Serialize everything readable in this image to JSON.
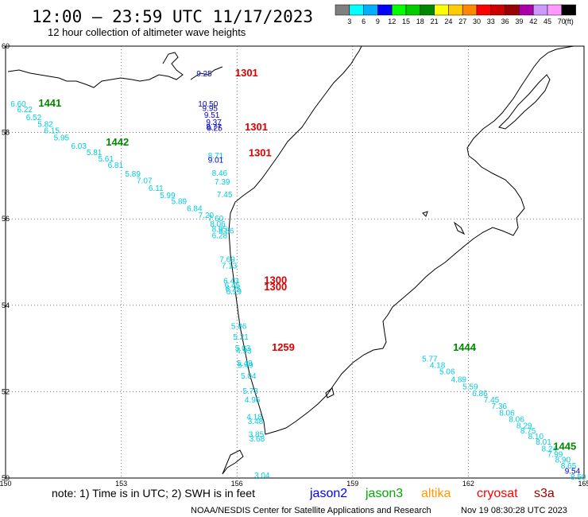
{
  "header": {
    "title": "12:00 – 23:59 UTC 11/17/2023",
    "subtitle": "12 hour collection of altimeter wave heights"
  },
  "scale": {
    "colors": [
      "#7f7f7f",
      "#00ffff",
      "#00b0ff",
      "#0000ff",
      "#00ff00",
      "#00cc00",
      "#008800",
      "#ffff00",
      "#ffcc00",
      "#ff8800",
      "#ff0000",
      "#cc0000",
      "#990000",
      "#aa00aa",
      "#cc99ff",
      "#ff99ff",
      "#000000"
    ],
    "labels": [
      "3",
      "6",
      "9",
      "12",
      "15",
      "18",
      "21",
      "24",
      "27",
      "30",
      "33",
      "36",
      "39",
      "42",
      "45",
      "70",
      "(ft)"
    ]
  },
  "map": {
    "lon_range": [
      150,
      165
    ],
    "lat_range": [
      50,
      60
    ],
    "lon_ticks": [
      "150",
      "153",
      "156",
      "159",
      "162",
      "165"
    ],
    "lat_ticks": [
      "60",
      "58",
      "56",
      "54",
      "52",
      "50"
    ],
    "grid": true,
    "grid_style": "dotted"
  },
  "chart_data": {
    "type": "scatter",
    "title": "12:00 – 23:59 UTC 11/17/2023",
    "subtitle": "12 hour collection of altimeter wave heights",
    "xlabel": "",
    "ylabel": "",
    "xlim": [
      150,
      165
    ],
    "ylim": [
      50,
      60
    ],
    "series": [
      {
        "name": "jason3",
        "color": "#00cc00",
        "points": [
          {
            "lon": 150.33,
            "lat": 58.6,
            "v": "6.60",
            "c": "#00ccdd"
          },
          {
            "lon": 150.5,
            "lat": 58.47,
            "v": "6.22",
            "c": "#00ccdd"
          },
          {
            "lon": 150.73,
            "lat": 58.29,
            "v": "6.52",
            "c": "#00ccdd"
          },
          {
            "lon": 151.03,
            "lat": 58.13,
            "v": "5.82",
            "c": "#00ccdd"
          },
          {
            "lon": 151.2,
            "lat": 57.98,
            "v": "6.15",
            "c": "#00ccdd"
          },
          {
            "lon": 151.45,
            "lat": 57.82,
            "v": "5.95",
            "c": "#00ccdd"
          },
          {
            "lon": 151.9,
            "lat": 57.62,
            "v": "6.03",
            "c": "#00ccdd"
          },
          {
            "lon": 152.3,
            "lat": 57.48,
            "v": "5.81",
            "c": "#00ccdd"
          },
          {
            "lon": 152.6,
            "lat": 57.33,
            "v": "5.61",
            "c": "#00ccdd"
          },
          {
            "lon": 152.85,
            "lat": 57.18,
            "v": "6.81",
            "c": "#00ccdd"
          },
          {
            "lon": 153.3,
            "lat": 56.98,
            "v": "5.89",
            "c": "#00ccdd"
          },
          {
            "lon": 153.6,
            "lat": 56.82,
            "v": "7.07",
            "c": "#00ccdd"
          },
          {
            "lon": 153.9,
            "lat": 56.65,
            "v": "6.11",
            "c": "#00ccdd"
          },
          {
            "lon": 154.2,
            "lat": 56.48,
            "v": "5.99",
            "c": "#00ccdd"
          },
          {
            "lon": 154.5,
            "lat": 56.34,
            "v": "5.89",
            "c": "#00ccdd"
          },
          {
            "lon": 154.9,
            "lat": 56.18,
            "v": "6.84",
            "c": "#00ccdd"
          },
          {
            "lon": 155.2,
            "lat": 56.02,
            "v": "7.20",
            "c": "#00ccdd"
          },
          {
            "lon": 155.45,
            "lat": 55.95,
            "v": "7.60",
            "c": "#00ccdd"
          },
          {
            "lon": 155.5,
            "lat": 55.82,
            "v": "8.06",
            "c": "#00ccdd"
          },
          {
            "lon": 155.55,
            "lat": 55.7,
            "v": "8.95",
            "c": "#00ccdd"
          },
          {
            "lon": 155.72,
            "lat": 55.66,
            "v": "8.86",
            "c": "#00ccdd"
          },
          {
            "lon": 155.55,
            "lat": 55.55,
            "v": "6.28",
            "c": "#00ccdd"
          },
          {
            "lon": 161.0,
            "lat": 52.7,
            "v": "5.77",
            "c": "#00ccdd"
          },
          {
            "lon": 161.2,
            "lat": 52.55,
            "v": "4.18",
            "c": "#00ccdd"
          },
          {
            "lon": 161.45,
            "lat": 52.4,
            "v": "5.06",
            "c": "#00ccdd"
          },
          {
            "lon": 161.75,
            "lat": 52.22,
            "v": "4.89",
            "c": "#00ccdd"
          },
          {
            "lon": 162.05,
            "lat": 52.05,
            "v": "5.59",
            "c": "#00ccdd"
          },
          {
            "lon": 162.3,
            "lat": 51.9,
            "v": "6.86",
            "c": "#00ccdd"
          },
          {
            "lon": 162.6,
            "lat": 51.75,
            "v": "7.45",
            "c": "#00ccdd"
          },
          {
            "lon": 162.8,
            "lat": 51.6,
            "v": "7.36",
            "c": "#00ccdd"
          },
          {
            "lon": 163.0,
            "lat": 51.45,
            "v": "8.06",
            "c": "#00ccdd"
          },
          {
            "lon": 163.25,
            "lat": 51.3,
            "v": "8.06",
            "c": "#00ccdd"
          },
          {
            "lon": 163.45,
            "lat": 51.15,
            "v": "8.29",
            "c": "#00ccdd"
          },
          {
            "lon": 163.55,
            "lat": 51.03,
            "v": "8.75",
            "c": "#00ccdd"
          },
          {
            "lon": 163.75,
            "lat": 50.9,
            "v": "8.10",
            "c": "#00ccdd"
          },
          {
            "lon": 163.95,
            "lat": 50.77,
            "v": "8.01",
            "c": "#00ccdd"
          },
          {
            "lon": 164.1,
            "lat": 50.62,
            "v": "8.24",
            "c": "#00ccdd"
          },
          {
            "lon": 164.25,
            "lat": 50.49,
            "v": "7.99",
            "c": "#00ccdd"
          },
          {
            "lon": 164.45,
            "lat": 50.36,
            "v": "8.90",
            "c": "#00ccdd"
          },
          {
            "lon": 164.6,
            "lat": 50.22,
            "v": "8.65",
            "c": "#00ccdd"
          },
          {
            "lon": 164.7,
            "lat": 50.1,
            "v": "9.54",
            "c": "#0000cc"
          },
          {
            "lon": 164.85,
            "lat": 49.96,
            "v": "8.50",
            "c": "#00ccdd"
          }
        ]
      },
      {
        "name": "cryosat",
        "color": "#ff0000",
        "points": [
          {
            "lon": 155.15,
            "lat": 59.3,
            "v": "9.25",
            "c": "#0000cc"
          },
          {
            "lon": 155.25,
            "lat": 58.6,
            "v": "10.50",
            "c": "#0000cc"
          },
          {
            "lon": 155.3,
            "lat": 58.5,
            "v": "9.95",
            "c": "#0000cc"
          },
          {
            "lon": 155.35,
            "lat": 58.34,
            "v": "9.51",
            "c": "#0000cc"
          },
          {
            "lon": 155.4,
            "lat": 58.18,
            "v": "9.37",
            "c": "#0000cc"
          },
          {
            "lon": 155.4,
            "lat": 58.07,
            "v": "8.77",
            "c": "#0000cc"
          },
          {
            "lon": 155.42,
            "lat": 58.04,
            "v": "9.25",
            "c": "#0000cc"
          },
          {
            "lon": 155.45,
            "lat": 57.4,
            "v": "8.71",
            "c": "#00ccdd"
          },
          {
            "lon": 155.45,
            "lat": 57.3,
            "v": "9.01",
            "c": "#0000cc"
          },
          {
            "lon": 155.55,
            "lat": 57.0,
            "v": "8.46",
            "c": "#00ccdd"
          },
          {
            "lon": 155.62,
            "lat": 56.8,
            "v": "7.39",
            "c": "#00ccdd"
          },
          {
            "lon": 155.68,
            "lat": 56.5,
            "v": "7.45",
            "c": "#00ccdd"
          },
          {
            "lon": 155.75,
            "lat": 55.0,
            "v": "7.69",
            "c": "#00ccdd"
          },
          {
            "lon": 155.8,
            "lat": 54.85,
            "v": "7.13",
            "c": "#00ccdd"
          },
          {
            "lon": 155.85,
            "lat": 54.5,
            "v": "6.43",
            "c": "#00ccdd"
          },
          {
            "lon": 155.88,
            "lat": 54.4,
            "v": "6.45",
            "c": "#00ccdd"
          },
          {
            "lon": 155.9,
            "lat": 54.32,
            "v": "6.25",
            "c": "#00ccdd"
          },
          {
            "lon": 155.92,
            "lat": 54.25,
            "v": "6.19",
            "c": "#00ccdd"
          },
          {
            "lon": 156.05,
            "lat": 53.45,
            "v": "5.86",
            "c": "#00ccdd"
          },
          {
            "lon": 156.1,
            "lat": 53.2,
            "v": "5.21",
            "c": "#00ccdd"
          },
          {
            "lon": 156.15,
            "lat": 52.95,
            "v": "5.03",
            "c": "#00ccdd"
          },
          {
            "lon": 156.18,
            "lat": 52.88,
            "v": "4.93",
            "c": "#00ccdd"
          },
          {
            "lon": 156.2,
            "lat": 52.6,
            "v": "5.49",
            "c": "#00ccdd"
          },
          {
            "lon": 156.22,
            "lat": 52.55,
            "v": "5.49",
            "c": "#00ccdd"
          },
          {
            "lon": 156.3,
            "lat": 52.3,
            "v": "5.04",
            "c": "#00ccdd"
          },
          {
            "lon": 156.35,
            "lat": 51.95,
            "v": "5.73",
            "c": "#00ccdd"
          },
          {
            "lon": 156.4,
            "lat": 51.75,
            "v": "4.96",
            "c": "#00ccdd"
          },
          {
            "lon": 156.45,
            "lat": 51.35,
            "v": "4.18",
            "c": "#00ccdd"
          },
          {
            "lon": 156.48,
            "lat": 51.25,
            "v": "3.48",
            "c": "#00ccdd"
          },
          {
            "lon": 156.5,
            "lat": 50.95,
            "v": "3.85",
            "c": "#00ccdd"
          },
          {
            "lon": 156.52,
            "lat": 50.85,
            "v": "3.68",
            "c": "#00ccdd"
          },
          {
            "lon": 156.65,
            "lat": 50.0,
            "v": "3.04",
            "c": "#00ccdd"
          }
        ]
      }
    ],
    "annotations": [
      {
        "text": "1441",
        "lon": 151.15,
        "lat": 58.6,
        "color": "#008800"
      },
      {
        "text": "1442",
        "lon": 152.9,
        "lat": 57.7,
        "color": "#008800"
      },
      {
        "text": "1301",
        "lon": 156.25,
        "lat": 59.3,
        "color": "#dd0000"
      },
      {
        "text": "1301",
        "lon": 156.5,
        "lat": 58.05,
        "color": "#dd0000"
      },
      {
        "text": "1301",
        "lon": 156.6,
        "lat": 57.45,
        "color": "#dd0000"
      },
      {
        "text": "1300",
        "lon": 157.0,
        "lat": 54.5,
        "color": "#dd0000"
      },
      {
        "text": "1300",
        "lon": 157.0,
        "lat": 54.35,
        "color": "#dd0000"
      },
      {
        "text": "1259",
        "lon": 157.2,
        "lat": 52.95,
        "color": "#dd0000"
      },
      {
        "text": "1444",
        "lon": 161.9,
        "lat": 52.95,
        "color": "#008800"
      },
      {
        "text": "1445",
        "lon": 164.5,
        "lat": 50.65,
        "color": "#008800"
      }
    ]
  },
  "footer": {
    "note": "note: 1) Time is in UTC; 2) SWH is in feet",
    "missions": [
      {
        "name": "jason2",
        "color": "#0000ff"
      },
      {
        "name": "jason3",
        "color": "#00aa00"
      },
      {
        "name": "altika",
        "color": "#ff9900"
      },
      {
        "name": "cryosat",
        "color": "#ff0000"
      },
      {
        "name": "s3a",
        "color": "#990000"
      }
    ],
    "credit": "NOAA/NESDIS Center for Satellite Applications and Research",
    "timestamp": "Nov 19 08:30:28 UTC 2023"
  }
}
